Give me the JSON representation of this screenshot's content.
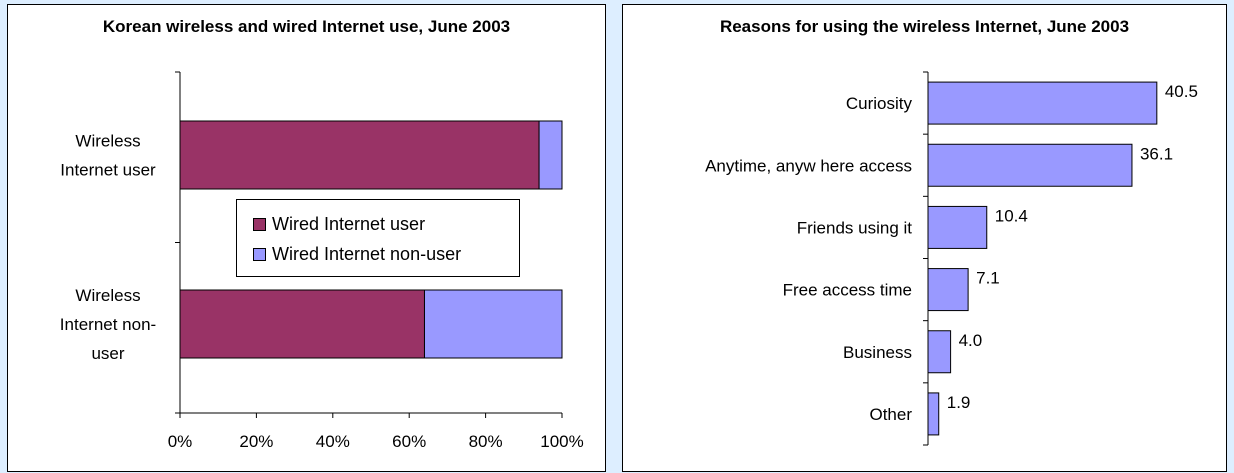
{
  "colors": {
    "background": "#ddeeff",
    "wired_user": "#993366",
    "wired_non_user": "#9999ff",
    "bar2": "#9999ff"
  },
  "chart_data": [
    {
      "type": "bar",
      "orientation": "horizontal",
      "stacked": true,
      "title": "Korean wireless and wired Internet use, June 2003",
      "categories": [
        [
          "Wireless",
          "Internet user"
        ],
        [
          "Wireless",
          "Internet non-",
          "user"
        ]
      ],
      "series": [
        {
          "name": "Wired Internet user",
          "values": [
            94,
            64
          ]
        },
        {
          "name": "Wired Internet non-user",
          "values": [
            6,
            36
          ]
        }
      ],
      "x_ticks": [
        "0%",
        "20%",
        "40%",
        "60%",
        "80%",
        "100%"
      ],
      "xlim": [
        0,
        100
      ],
      "legend_position": "center",
      "grid": false
    },
    {
      "type": "bar",
      "orientation": "horizontal",
      "title": "Reasons for using the wireless Internet, June 2003",
      "categories": [
        "Curiosity",
        "Anytime, anyw here access",
        "Friends using it",
        "Free access time",
        "Business",
        "Other"
      ],
      "values": [
        40.5,
        36.1,
        10.4,
        7.1,
        4.0,
        1.9
      ],
      "value_labels": [
        "40.5",
        "36.1",
        "10.4",
        "7.1",
        "4.0",
        "1.9"
      ],
      "xlim": [
        0,
        45
      ],
      "grid": false
    }
  ]
}
